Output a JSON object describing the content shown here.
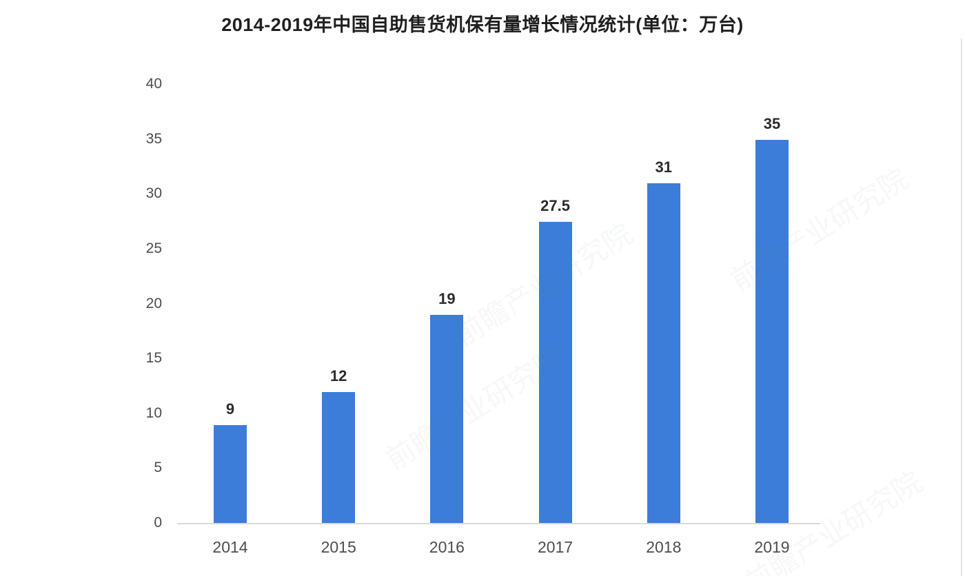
{
  "watermark_text": "前瞻产业研究院",
  "colors": {
    "bar": "#3b7dd8",
    "axis_line": "#d9d9d9",
    "title_text": "#1f1f1f",
    "tick_text": "#4d4d4d",
    "value_text": "#2b2b2b"
  },
  "chart_data": {
    "type": "bar",
    "title": "2014-2019年中国自助售货机保有量增长情况统计(单位：万台)",
    "categories": [
      "2014",
      "2015",
      "2016",
      "2017",
      "2018",
      "2019"
    ],
    "values": [
      9,
      12,
      19,
      27.5,
      31,
      35
    ],
    "value_labels": [
      "9",
      "12",
      "19",
      "27.5",
      "31",
      "35"
    ],
    "yticks": [
      0,
      5,
      10,
      15,
      20,
      25,
      30,
      35,
      40
    ],
    "ylim": [
      0,
      40
    ],
    "xlabel": "",
    "ylabel": "",
    "grid": false,
    "legend": false,
    "bar_color": "#3b7dd8"
  }
}
